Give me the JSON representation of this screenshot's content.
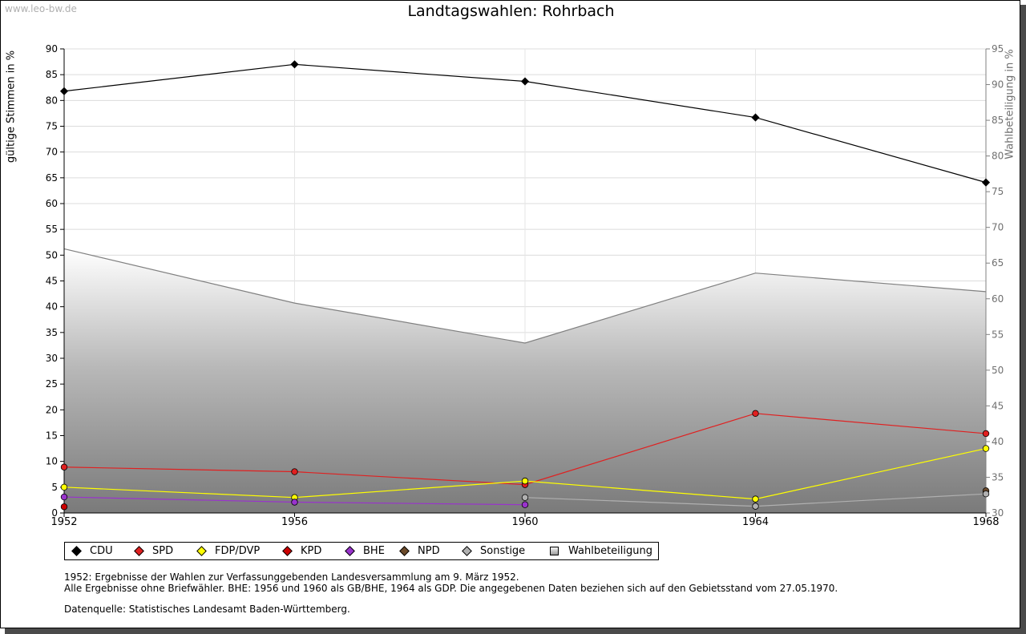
{
  "watermark": "www.leo-bw.de",
  "chart_data": {
    "type": "line",
    "title": "Landtagswahlen: Rohrbach",
    "ylabel": "gültige Stimmen in %",
    "ylabel_right": "Wahlbeteiligung in %",
    "x": [
      1952,
      1956,
      1960,
      1964,
      1968
    ],
    "ylim": [
      0,
      90
    ],
    "ylim_right": [
      30,
      95
    ],
    "yticks": [
      "0",
      "5",
      "10",
      "15",
      "20",
      "25",
      "30",
      "35",
      "40",
      "45",
      "50",
      "55",
      "60",
      "65",
      "70",
      "75",
      "80",
      "85",
      "90"
    ],
    "yticks_right": [
      "30",
      "35",
      "40",
      "45",
      "50",
      "55",
      "60",
      "65",
      "70",
      "75",
      "80",
      "85",
      "90",
      "95"
    ],
    "grid": true,
    "legend_position": "bottom",
    "area_series": {
      "name": "Wahlbeteiligung",
      "axis": "right",
      "values": [
        67.0,
        59.4,
        53.8,
        63.6,
        61.0
      ],
      "color": "#808080"
    },
    "series": [
      {
        "name": "CDU",
        "color": "#000000",
        "values": [
          81.8,
          87.0,
          83.7,
          76.7,
          64.1
        ]
      },
      {
        "name": "SPD",
        "color": "#e02020",
        "values": [
          8.9,
          8.0,
          5.5,
          19.3,
          15.4
        ]
      },
      {
        "name": "FDP/DVP",
        "color": "#ffff00",
        "values": [
          5.0,
          3.0,
          6.2,
          2.7,
          12.5
        ]
      },
      {
        "name": "KPD",
        "color": "#cc0000",
        "values": [
          1.2,
          null,
          null,
          null,
          null
        ]
      },
      {
        "name": "BHE",
        "color": "#9933cc",
        "values": [
          3.1,
          2.1,
          1.6,
          null,
          null
        ]
      },
      {
        "name": "NPD",
        "color": "#6b4a2a",
        "values": [
          null,
          null,
          null,
          null,
          4.3
        ]
      },
      {
        "name": "Sonstige",
        "color": "#b0b0b0",
        "values": [
          null,
          null,
          3.0,
          1.3,
          3.7
        ]
      }
    ]
  },
  "legend": [
    {
      "label": "CDU",
      "color": "#000000"
    },
    {
      "label": "SPD",
      "color": "#e02020"
    },
    {
      "label": "FDP/DVP",
      "color": "#ffff00"
    },
    {
      "label": "KPD",
      "color": "#cc0000"
    },
    {
      "label": "BHE",
      "color": "#9933cc"
    },
    {
      "label": "NPD",
      "color": "#6b4a2a"
    },
    {
      "label": "Sonstige",
      "color": "#b0b0b0"
    },
    {
      "label": "Wahlbeteiligung",
      "color": "#808080"
    }
  ],
  "notes": {
    "line1": "1952: Ergebnisse der Wahlen zur Verfassunggebenden Landesversammlung am 9. März 1952.",
    "line2": "Alle Ergebnisse ohne Briefwähler. BHE: 1956 und 1960 als GB/BHE, 1964 als GDP. Die angegebenen Daten beziehen sich auf den Gebietsstand vom 27.05.1970.",
    "source": "Datenquelle: Statistisches Landesamt Baden-Württemberg."
  }
}
